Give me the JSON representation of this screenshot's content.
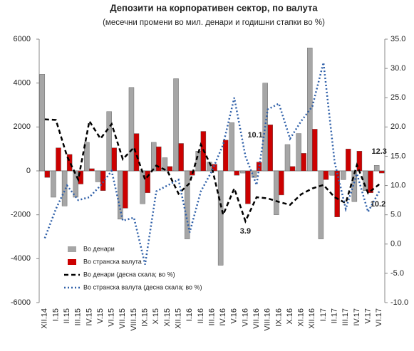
{
  "chart_data": {
    "type": "bar_line",
    "title": "Депозити на корпоративен сектор, по валута",
    "subtitle": "(месечни промени во мил. денари и годишни стапки во %)",
    "categories": [
      "XII.14",
      "I.15",
      "II.15",
      "III.15",
      "IV.15",
      "V.15",
      "VI.15",
      "VII.15",
      "VIII.15",
      "IX.15",
      "X.15",
      "XI.15",
      "XII.15",
      "I.16",
      "II.16",
      "III.16",
      "IV.16",
      "V.16",
      "VI.16",
      "VII.16",
      "VIII.16",
      "IX.16",
      "X.16",
      "XI.16",
      "XII.16",
      "I.17",
      "II.17",
      "III.17",
      "IV.17",
      "V.17",
      "VI.17"
    ],
    "series": [
      {
        "name": "Во денари",
        "color": "#a6a6a6",
        "kind": "bar",
        "values": [
          4400,
          -1200,
          -1600,
          -1200,
          1300,
          -500,
          2700,
          -2200,
          3800,
          -1500,
          1300,
          600,
          4200,
          -3100,
          900,
          400,
          -4300,
          2200,
          -100,
          -300,
          4000,
          -2000,
          1200,
          1700,
          5600,
          -3100,
          -200,
          -400,
          -1400,
          -900,
          250
        ]
      },
      {
        "name": "Во странска валута",
        "color": "#cc0000",
        "kind": "bar",
        "values": [
          -300,
          1050,
          750,
          -600,
          100,
          -900,
          1050,
          -1700,
          1700,
          -1000,
          1100,
          200,
          1250,
          -200,
          1800,
          300,
          1400,
          -200,
          -1500,
          400,
          2100,
          -1100,
          200,
          800,
          1900,
          -400,
          -2100,
          1000,
          900,
          -1000,
          -100
        ]
      },
      {
        "name": "Во денари (десна скала; во %)",
        "color": "#000000",
        "kind": "line",
        "dash": "6,4",
        "axis": "y2",
        "values": [
          21.3,
          21.2,
          15,
          11,
          21,
          18,
          20.5,
          14.5,
          16.5,
          11,
          13.4,
          12.5,
          8.6,
          10.4,
          17,
          13,
          5,
          9.5,
          3.9,
          8,
          7.8,
          7.2,
          6.7,
          8.5,
          9.5,
          10.1,
          8,
          7,
          13.5,
          8.7,
          10.2
        ]
      },
      {
        "name": "Во странска валута (десна скала; во %)",
        "color": "#2e5fa8",
        "kind": "line",
        "dash": "2,3",
        "axis": "y2",
        "values": [
          1,
          6,
          10,
          7.5,
          8,
          10,
          12.5,
          4,
          4.5,
          -3.5,
          9,
          10,
          11,
          2,
          9,
          12.5,
          17,
          25,
          15,
          10.1,
          23,
          24,
          18,
          21,
          23.5,
          31,
          14,
          6,
          12,
          5.5,
          9
        ]
      }
    ],
    "annotations": [
      "10.1",
      "3.9",
      "12.3",
      "10.2"
    ],
    "ylim": [
      -6000,
      6000
    ],
    "yticks": [
      -6000,
      -4000,
      -2000,
      0,
      2000,
      4000,
      6000
    ],
    "y2lim": [
      -10,
      35
    ],
    "y2ticks": [
      {
        "value": -10,
        "label": "-10.0"
      },
      {
        "value": -5,
        "label": "-5.0"
      },
      {
        "value": 0,
        "label": "0.0"
      },
      {
        "value": 5,
        "label": "5.0"
      },
      {
        "value": 10,
        "label": "10.0"
      },
      {
        "value": 15,
        "label": "15.0"
      },
      {
        "value": 20,
        "label": "20.0"
      },
      {
        "value": 25,
        "label": "25.0"
      },
      {
        "value": 30,
        "label": "30.0"
      },
      {
        "value": 35,
        "label": "35.0"
      }
    ],
    "legend": "bottom-left"
  }
}
